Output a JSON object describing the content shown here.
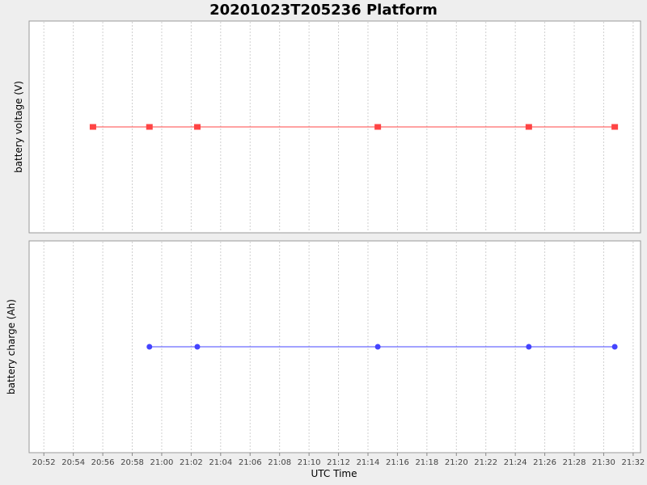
{
  "chart_data": {
    "type": "line",
    "title": "20201023T205236 Platform",
    "xlabel": "UTC Time",
    "x_ticks": [
      "20:52",
      "20:54",
      "20:56",
      "20:58",
      "21:00",
      "21:02",
      "21:04",
      "21:06",
      "21:08",
      "21:10",
      "21:12",
      "21:14",
      "21:16",
      "21:18",
      "21:20",
      "21:22",
      "21:24",
      "21:26",
      "21:28",
      "21:30",
      "21:32"
    ],
    "xlim": [
      "20:51:00",
      "21:32:30"
    ],
    "grid": true,
    "panels": [
      {
        "ylabel": "battery voltage (V)",
        "marker": "square",
        "color": "#ff4444",
        "series": [
          {
            "x": [
              "20:55:20",
              "20:59:10",
              "21:02:25",
              "21:14:40",
              "21:24:55",
              "21:30:45"
            ],
            "y": [
              0,
              0,
              0,
              0,
              0,
              0
            ]
          }
        ]
      },
      {
        "ylabel": "battery charge (Ah)",
        "marker": "circle",
        "color": "#4444ff",
        "series": [
          {
            "x": [
              "20:59:10",
              "21:02:25",
              "21:14:40",
              "21:24:55",
              "21:30:45"
            ],
            "y": [
              0,
              0,
              0,
              0,
              0
            ]
          }
        ]
      }
    ]
  }
}
